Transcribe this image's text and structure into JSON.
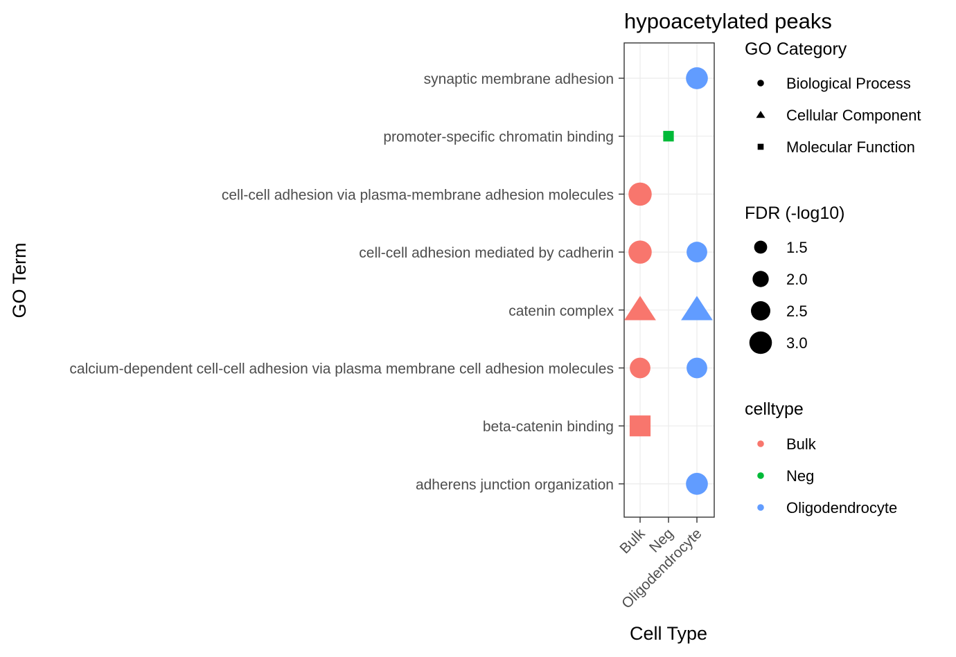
{
  "chart_data": {
    "type": "scatter",
    "title": "hypoacetylated peaks",
    "xlabel": "Cell Type",
    "ylabel": "GO Term",
    "x_categories": [
      "Bulk",
      "Neg",
      "Oligodendrocyte"
    ],
    "y_categories": [
      "synaptic membrane adhesion",
      "promoter-specific chromatin binding",
      "cell-cell adhesion via plasma-membrane adhesion molecules",
      "cell-cell adhesion mediated by cadherin",
      "catenin complex",
      "calcium-dependent cell-cell adhesion via plasma membrane cell adhesion molecules",
      "beta-catenin binding",
      "adherens junction organization"
    ],
    "grid": true,
    "points": [
      {
        "celltype": "Oligodendrocyte",
        "term": "synaptic membrane adhesion",
        "category": "Biological Process",
        "fdr": 2.9
      },
      {
        "celltype": "Neg",
        "term": "promoter-specific chromatin binding",
        "category": "Molecular Function",
        "fdr": 1.3
      },
      {
        "celltype": "Bulk",
        "term": "cell-cell adhesion via plasma-membrane adhesion molecules",
        "category": "Biological Process",
        "fdr": 3.1
      },
      {
        "celltype": "Bulk",
        "term": "cell-cell adhesion mediated by cadherin",
        "category": "Biological Process",
        "fdr": 3.1
      },
      {
        "celltype": "Oligodendrocyte",
        "term": "cell-cell adhesion mediated by cadherin",
        "category": "Biological Process",
        "fdr": 2.7
      },
      {
        "celltype": "Bulk",
        "term": "catenin complex",
        "category": "Cellular Component",
        "fdr": 3.1
      },
      {
        "celltype": "Oligodendrocyte",
        "term": "catenin complex",
        "category": "Cellular Component",
        "fdr": 3.1
      },
      {
        "celltype": "Bulk",
        "term": "calcium-dependent cell-cell adhesion via plasma membrane cell adhesion molecules",
        "category": "Biological Process",
        "fdr": 2.7
      },
      {
        "celltype": "Oligodendrocyte",
        "term": "calcium-dependent cell-cell adhesion via plasma membrane cell adhesion molecules",
        "category": "Biological Process",
        "fdr": 2.7
      },
      {
        "celltype": "Bulk",
        "term": "beta-catenin binding",
        "category": "Molecular Function",
        "fdr": 3.1
      },
      {
        "celltype": "Oligodendrocyte",
        "term": "adherens junction organization",
        "category": "Biological Process",
        "fdr": 2.9
      }
    ],
    "legends": {
      "shape": {
        "title": "GO Category",
        "items": [
          {
            "label": "Biological Process",
            "shape": "circle"
          },
          {
            "label": "Cellular Component",
            "shape": "triangle"
          },
          {
            "label": "Molecular Function",
            "shape": "square"
          }
        ]
      },
      "size": {
        "title": "FDR (-log10)",
        "items": [
          {
            "label": "1.5",
            "value": 1.5
          },
          {
            "label": "2.0",
            "value": 2.0
          },
          {
            "label": "2.5",
            "value": 2.5
          },
          {
            "label": "3.0",
            "value": 3.0
          }
        ]
      },
      "color": {
        "title": "celltype",
        "items": [
          {
            "label": "Bulk",
            "color": "#F8766D"
          },
          {
            "label": "Neg",
            "color": "#00BA38"
          },
          {
            "label": "Oligodendrocyte",
            "color": "#619CFF"
          }
        ]
      },
      "placement": "right"
    }
  }
}
